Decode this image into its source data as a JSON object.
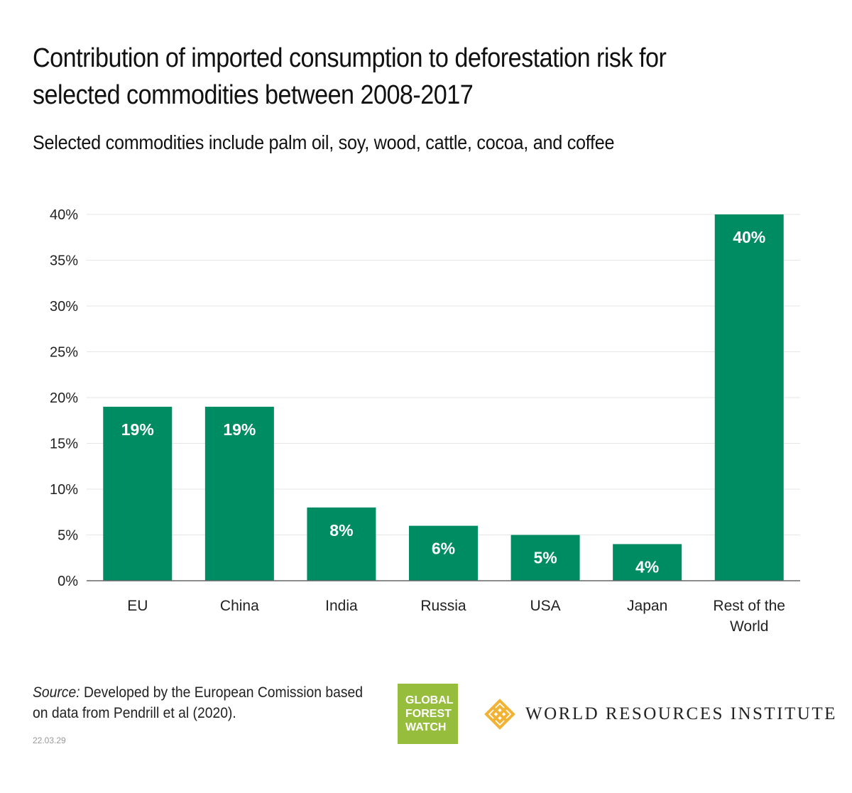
{
  "header": {
    "title": "Contribution of imported consumption to deforestation risk for selected commodities between 2008-2017",
    "subtitle": "Selected commodities include palm oil, soy, wood, cattle, cocoa, and coffee"
  },
  "chart_data": {
    "type": "bar",
    "title": "Contribution of imported consumption to deforestation risk for selected commodities between 2008-2017",
    "subtitle": "Selected commodities include palm oil, soy, wood, cattle, cocoa, and coffee",
    "categories": [
      "EU",
      "China",
      "India",
      "Russia",
      "USA",
      "Japan",
      "Rest of the World"
    ],
    "values": [
      19,
      19,
      8,
      6,
      5,
      4,
      40
    ],
    "data_labels": [
      "19%",
      "19%",
      "8%",
      "6%",
      "5%",
      "4%",
      "40%"
    ],
    "ylim": [
      0,
      40
    ],
    "yticks": [
      0,
      5,
      10,
      15,
      20,
      25,
      30,
      35,
      40
    ],
    "ytick_labels": [
      "0%",
      "5%",
      "10%",
      "15%",
      "20%",
      "25%",
      "30%",
      "35%",
      "40%"
    ],
    "xlabel": "",
    "ylabel": "",
    "grid": true,
    "colors": {
      "bar": "#008c62",
      "grid": "#e6e6e6",
      "axis": "#666666",
      "label_on_bar": "#ffffff"
    }
  },
  "footer": {
    "source_prefix": "Source:",
    "source_text": " Developed by the European Comission based on data from Pendrill et al (2020).",
    "date": "22.03.29",
    "logos": {
      "gfw_lines": [
        "GLOBAL",
        "FOREST",
        "WATCH"
      ],
      "gfw_color": "#97bd3d",
      "wri_text": "WORLD RESOURCES INSTITUTE",
      "wri_icon": "wri-star-icon",
      "wri_color": "#f2b233"
    }
  }
}
